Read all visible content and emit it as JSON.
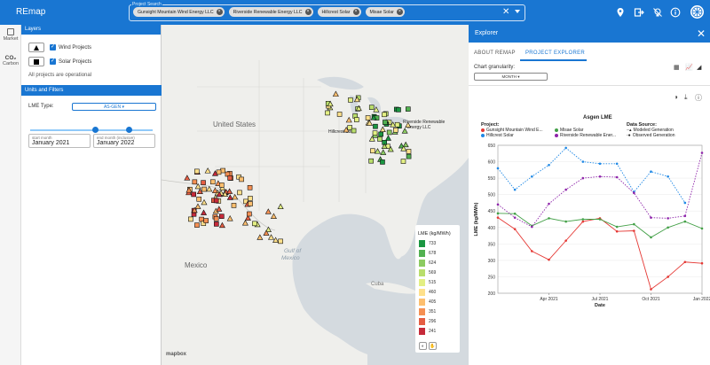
{
  "app": {
    "title": "REmap"
  },
  "search": {
    "label": "Project Search",
    "chips": [
      "Gunsight Mountain Wind Energy LLC",
      "Riverside Renewable Energy LLC",
      "Hillcrest Solar",
      "Misae Solar"
    ]
  },
  "rail": {
    "items": [
      {
        "label": "Market"
      },
      {
        "label": "Carbon"
      }
    ]
  },
  "layers": {
    "header": "Layers",
    "wind_label": "Wind Projects",
    "solar_label": "Solar Projects",
    "note": "All projects are operational"
  },
  "units": {
    "header": "Units and Filters",
    "lme_label": "LME Type:",
    "lme_value": "AS-GEN",
    "start_label": "start month",
    "start_value": "January 2021",
    "end_label": "end month (inclusive)",
    "end_value": "January 2022"
  },
  "map": {
    "labels": {
      "us": "United States",
      "mexico": "Mexico",
      "gulf1": "Gulf of",
      "gulf2": "Mexico",
      "cuba": "Cuba",
      "hillcrest": "Hillcrest Solar",
      "riverside": "Riverside Renewable",
      "riverside2": "Energy LLC",
      "mapbox": "mapbox"
    },
    "legend": {
      "title": "LME (kg/MWh)",
      "bins": [
        {
          "label": "733",
          "color": "#1a9641"
        },
        {
          "label": "678",
          "color": "#52b151"
        },
        {
          "label": "624",
          "color": "#8ccb61"
        },
        {
          "label": "569",
          "color": "#b9de6c"
        },
        {
          "label": "515",
          "color": "#e3ef83"
        },
        {
          "label": "460",
          "color": "#fee08b"
        },
        {
          "label": "405",
          "color": "#fdbf6f"
        },
        {
          "label": "351",
          "color": "#f59053"
        },
        {
          "label": "296",
          "color": "#e55e43"
        },
        {
          "label": "241",
          "color": "#c62a3a"
        }
      ]
    }
  },
  "explorer": {
    "title": "Explorer",
    "tabs": [
      "ABOUT REMAP",
      "PROJECT EXPLORER"
    ],
    "granularity_label": "Chart granularity:",
    "granularity_value": "MONTH"
  },
  "chart_data": {
    "type": "line",
    "title": "Asgen LME",
    "xlabel": "Date",
    "ylabel": "LME (kg/MWh)",
    "ylim": [
      200,
      650
    ],
    "yticks": [
      200,
      250,
      300,
      350,
      400,
      450,
      500,
      550,
      600,
      650
    ],
    "x": [
      "2021-01",
      "2021-02",
      "2021-03",
      "2021-04",
      "2021-05",
      "2021-06",
      "2021-07",
      "2021-08",
      "2021-09",
      "2021-10",
      "2021-11",
      "2021-12",
      "2022-01"
    ],
    "xtick_labels": [
      {
        "x": "2021-04",
        "label": "Apr 2021"
      },
      {
        "x": "2021-07",
        "label": "Jul 2021"
      },
      {
        "x": "2021-10",
        "label": "Oct 2021"
      },
      {
        "x": "2022-01",
        "label": "Jan 2022"
      }
    ],
    "legend_title": "Project:",
    "source_title": "Data Source:",
    "sources": [
      "Modeled Generation",
      "Observed Generation"
    ],
    "series": [
      {
        "name": "Gunsight Mountain Wind E...",
        "color": "#e53935",
        "values": [
          430,
          395,
          328,
          302,
          360,
          418,
          428,
          388,
          390,
          212,
          250,
          295,
          291
        ]
      },
      {
        "name": "Hillcrest Solar",
        "color": "#1e88e5",
        "values": [
          580,
          515,
          555,
          590,
          642,
          600,
          594,
          594,
          508,
          570,
          555,
          475,
          null
        ]
      },
      {
        "name": "Misae Solar",
        "color": "#43a047",
        "values": [
          443,
          442,
          405,
          428,
          418,
          425,
          425,
          402,
          410,
          370,
          400,
          418,
          397
        ]
      },
      {
        "name": "Riverside Renewable Ener...",
        "color": "#8e24aa",
        "values": [
          470,
          430,
          402,
          472,
          515,
          550,
          555,
          553,
          505,
          430,
          428,
          435,
          627
        ]
      }
    ]
  }
}
